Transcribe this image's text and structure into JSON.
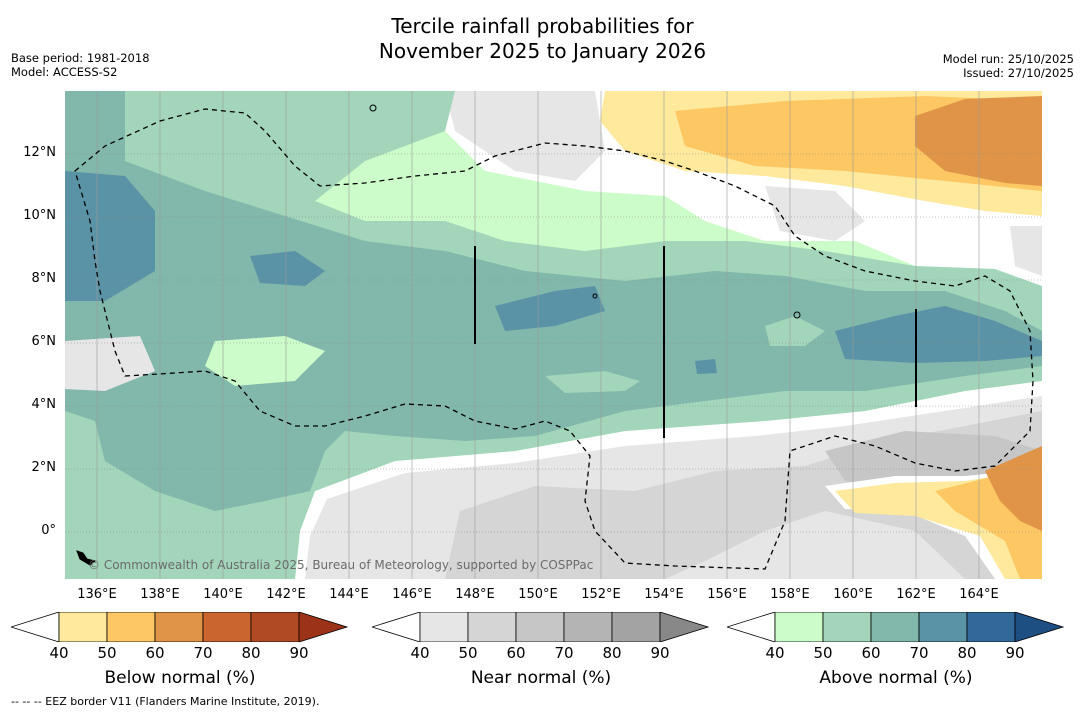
{
  "title": {
    "line1": "Tercile rainfall probabilities for",
    "line2": "November 2025 to January 2026"
  },
  "meta": {
    "base_period": "Base period: 1981-2018",
    "model": "Model: ACCESS-S2",
    "model_run": "Model run: 25/10/2025",
    "issued": "Issued: 27/10/2025"
  },
  "axes": {
    "lat_labels": [
      "12°N",
      "10°N",
      "8°N",
      "6°N",
      "4°N",
      "2°N",
      "0°"
    ],
    "lon_labels": [
      "136°E",
      "138°E",
      "140°E",
      "142°E",
      "144°E",
      "146°E",
      "148°E",
      "150°E",
      "152°E",
      "154°E",
      "156°E",
      "158°E",
      "160°E",
      "162°E",
      "164°E"
    ]
  },
  "copyright": "© Commonwealth of Australia 2025, Bureau of Meteorology, supported by COSPPac",
  "colorbars": {
    "ticks": [
      "40",
      "50",
      "60",
      "70",
      "80",
      "90"
    ],
    "below": {
      "label": "Below normal (%)",
      "colors": [
        "#ffffff",
        "#fee99d",
        "#fdc863",
        "#e09447",
        "#cb6530",
        "#b04a25",
        "#9c3318"
      ]
    },
    "near": {
      "label": "Near normal (%)",
      "colors": [
        "#ffffff",
        "#e6e6e6",
        "#d5d5d5",
        "#c6c6c6",
        "#b4b4b4",
        "#a3a3a3",
        "#888888"
      ]
    },
    "above": {
      "label": "Above normal (%)",
      "colors": [
        "#ffffff",
        "#ccfcc9",
        "#a2d5b9",
        "#82b7ab",
        "#5a93a5",
        "#31699a",
        "#1e4f83"
      ]
    }
  },
  "footnote": "--  --  -- EEZ border V11 (Flanders Marine Institute, 2019)."
}
